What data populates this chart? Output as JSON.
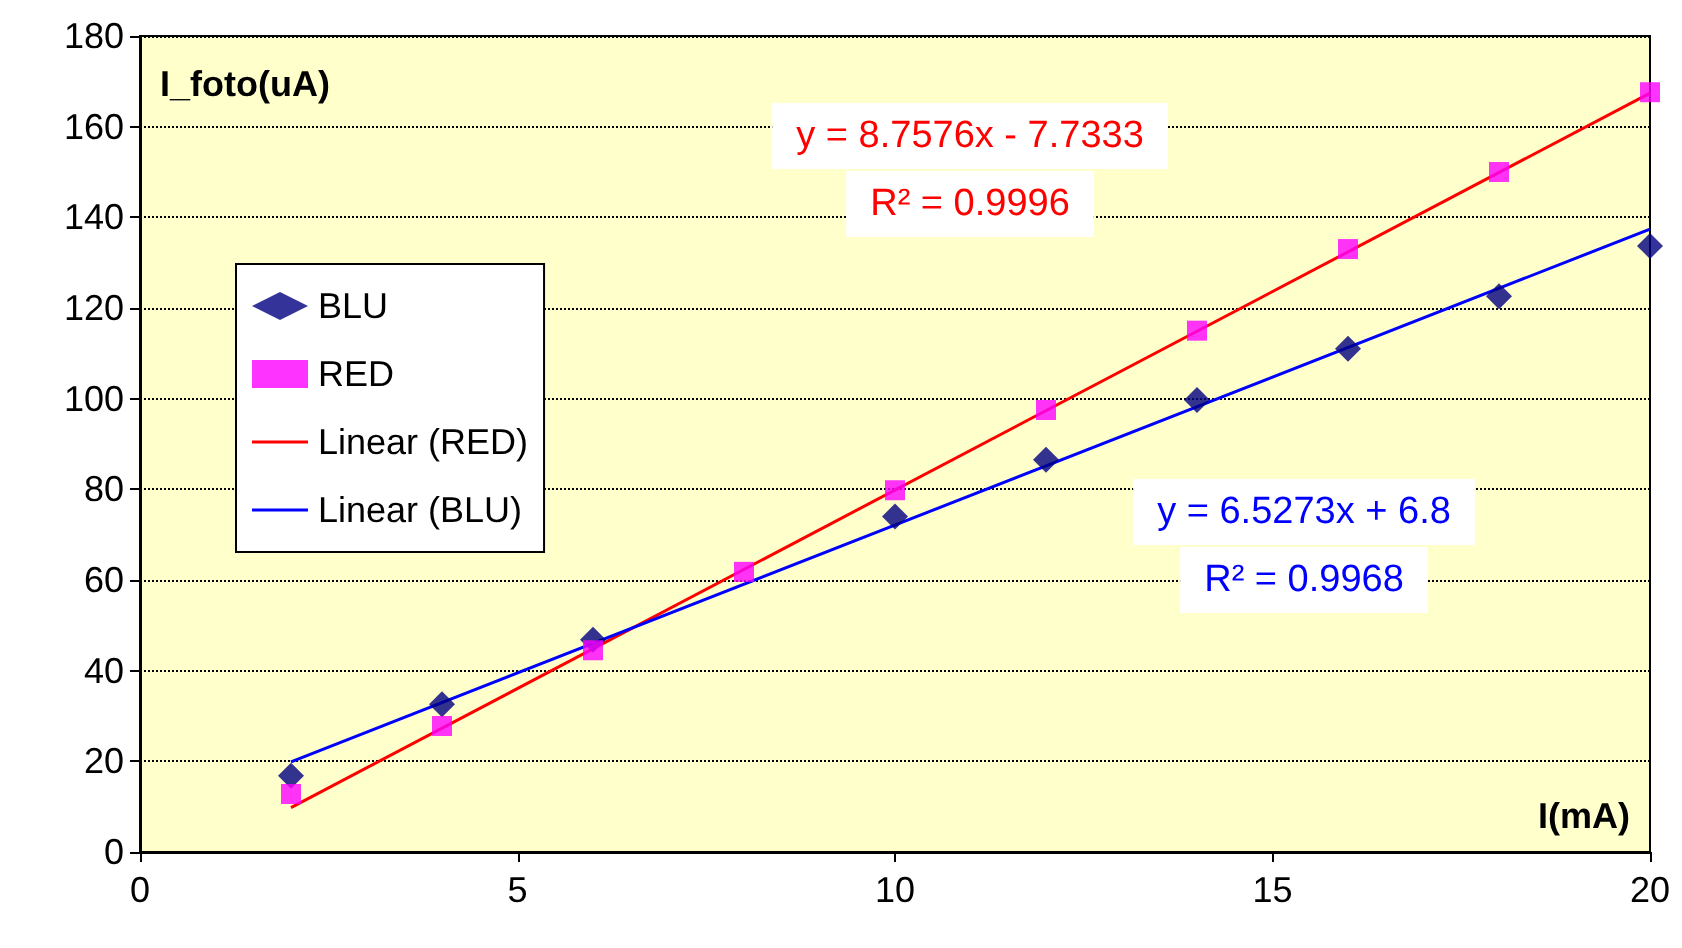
{
  "chart_data": {
    "type": "scatter",
    "xlabel": "I(mA)",
    "ylabel": "I_foto(uA)",
    "xlim": [
      0,
      20
    ],
    "xticks": [
      0,
      5,
      10,
      15,
      20
    ],
    "ylim": [
      0,
      180
    ],
    "yticks": [
      0,
      20,
      40,
      60,
      80,
      100,
      120,
      140,
      160,
      180
    ],
    "grid": "y",
    "legend": "left",
    "series": [
      {
        "name": "BLU",
        "color": "#000080",
        "marker": "diamond",
        "x": [
          2,
          4,
          6,
          8,
          10,
          12,
          14,
          16,
          18,
          20
        ],
        "values": [
          16.8,
          32.6,
          46.8,
          null,
          74,
          86.5,
          99.7,
          111,
          122.6,
          133.7
        ]
      },
      {
        "name": "RED",
        "color": "#ff00ff",
        "marker": "square",
        "x": [
          2,
          4,
          6,
          8,
          10,
          12,
          14,
          16,
          18,
          20
        ],
        "values": [
          12.8,
          27.8,
          44.5,
          61.8,
          79.8,
          97.5,
          115,
          133,
          150,
          167.6
        ]
      },
      {
        "name": "Linear (RED)",
        "type": "line",
        "color": "#ff0000",
        "marker": "none",
        "x": [
          2,
          20
        ],
        "values": [
          9.8,
          167.4
        ]
      },
      {
        "name": "Linear (BLU)",
        "type": "line",
        "color": "#0000ff",
        "marker": "none",
        "x": [
          2,
          20
        ],
        "values": [
          19.9,
          137.4
        ]
      }
    ],
    "annotations": [
      "y = 8.7576x - 7.7333",
      "R² = 0.9996",
      "y = 6.5273x + 6.8",
      "R² = 0.9968"
    ]
  }
}
